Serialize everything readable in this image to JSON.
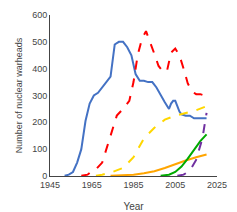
{
  "chart_data": {
    "type": "line",
    "xlabel": "Year",
    "ylabel": "Number of nuclear warheads",
    "xlim": [
      1945,
      2025
    ],
    "ylim": [
      0,
      600
    ],
    "xticks": [
      1945,
      1965,
      1985,
      2005,
      2025
    ],
    "yticks": [
      0,
      100,
      200,
      300,
      400,
      500,
      600
    ],
    "grid": false,
    "series": [
      {
        "color": "#4472C4",
        "line_style": "solid",
        "x": [
          1952,
          1954,
          1956,
          1958,
          1960,
          1962,
          1964,
          1966,
          1968,
          1970,
          1972,
          1974,
          1976,
          1978,
          1980,
          1982,
          1984,
          1986,
          1988,
          1990,
          1992,
          1994,
          1996,
          1998,
          2000,
          2002,
          2003,
          2004,
          2005,
          2006,
          2007,
          2008,
          2010,
          2012,
          2014,
          2016,
          2018,
          2020
        ],
        "values": [
          1,
          5,
          15,
          50,
          100,
          205,
          270,
          300,
          310,
          330,
          350,
          370,
          490,
          500,
          500,
          480,
          450,
          380,
          355,
          355,
          350,
          350,
          330,
          300,
          275,
          250,
          270,
          280,
          280,
          260,
          240,
          230,
          225,
          225,
          215,
          215,
          215,
          215
        ]
      },
      {
        "color": "#FF0000",
        "line_style": "dashed",
        "x": [
          1960,
          1963,
          1965,
          1967,
          1970,
          1973,
          1975,
          1977,
          1980,
          1983,
          1985,
          1987,
          1989,
          1991,
          1993,
          1995,
          1997,
          1999,
          2001,
          2003,
          2005,
          2007,
          2009,
          2011,
          2013,
          2015,
          2017,
          2019
        ],
        "values": [
          1,
          5,
          18,
          25,
          50,
          120,
          175,
          225,
          250,
          280,
          350,
          450,
          510,
          540,
          500,
          455,
          410,
          390,
          390,
          460,
          475,
          450,
          400,
          345,
          315,
          305,
          305,
          300
        ]
      },
      {
        "color": "#FFD700",
        "line_style": "dashed",
        "x": [
          1967,
          1970,
          1975,
          1980,
          1985,
          1990,
          1995,
          2000,
          2005,
          2010,
          2015,
          2020
        ],
        "values": [
          1,
          5,
          15,
          30,
          70,
          140,
          180,
          210,
          225,
          235,
          245,
          260
        ]
      },
      {
        "color": "#FFA500",
        "line_style": "solid",
        "x": [
          1974,
          1980,
          1985,
          1990,
          1995,
          2000,
          2005,
          2010,
          2015,
          2020
        ],
        "values": [
          1,
          2,
          5,
          10,
          18,
          30,
          45,
          58,
          70,
          80
        ]
      },
      {
        "color": "#00AA00",
        "line_style": "solid",
        "x": [
          1998,
          2002,
          2005,
          2008,
          2011,
          2014,
          2017,
          2020
        ],
        "values": [
          1,
          5,
          15,
          35,
          65,
          100,
          130,
          155
        ]
      },
      {
        "color": "#7030A0",
        "line_style": "dashed",
        "x": [
          2006,
          2009,
          2012,
          2015,
          2018,
          2020
        ],
        "values": [
          1,
          5,
          20,
          60,
          140,
          235
        ]
      }
    ]
  }
}
